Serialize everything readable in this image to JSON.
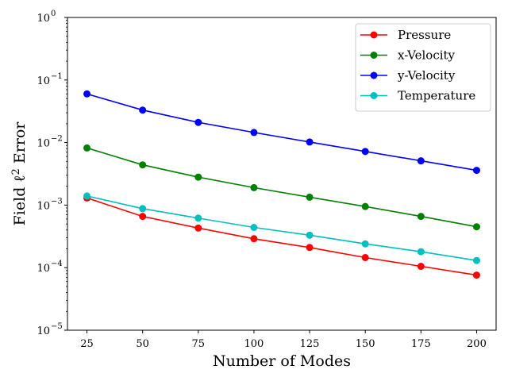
{
  "chart_data": {
    "type": "line",
    "xlabel": "Number of Modes",
    "ylabel": "Field ℓ² Error",
    "yscale": "log",
    "ylim": [
      1e-05,
      1
    ],
    "xlim": [
      16.25,
      208.75
    ],
    "xticks": [
      25,
      50,
      75,
      100,
      125,
      150,
      175,
      200
    ],
    "yticks": [
      {
        "value": 1e-05,
        "base": "10",
        "exp": "−5"
      },
      {
        "value": 0.0001,
        "base": "10",
        "exp": "−4"
      },
      {
        "value": 0.001,
        "base": "10",
        "exp": "−3"
      },
      {
        "value": 0.01,
        "base": "10",
        "exp": "−2"
      },
      {
        "value": 0.1,
        "base": "10",
        "exp": "−1"
      },
      {
        "value": 1,
        "base": "10",
        "exp": "0"
      }
    ],
    "grid": false,
    "legend_position": "top-right",
    "x": [
      25,
      50,
      75,
      100,
      125,
      150,
      175,
      200
    ],
    "series": [
      {
        "name": "Pressure",
        "color": "#ff0000",
        "values": [
          0.0013,
          0.00066,
          0.00043,
          0.00029,
          0.00021,
          0.000145,
          0.000105,
          7.6e-05
        ]
      },
      {
        "name": "x-Velocity",
        "color": "#008000",
        "values": [
          0.0082,
          0.0044,
          0.0028,
          0.0019,
          0.00134,
          0.00095,
          0.00066,
          0.00045
        ]
      },
      {
        "name": "y-Velocity",
        "color": "#0000ff",
        "values": [
          0.06,
          0.033,
          0.021,
          0.0145,
          0.0102,
          0.0072,
          0.0051,
          0.0036
        ]
      },
      {
        "name": "Temperature",
        "color": "#00bfbf",
        "values": [
          0.0014,
          0.00088,
          0.00062,
          0.00044,
          0.00033,
          0.00024,
          0.00018,
          0.00013
        ]
      }
    ]
  }
}
